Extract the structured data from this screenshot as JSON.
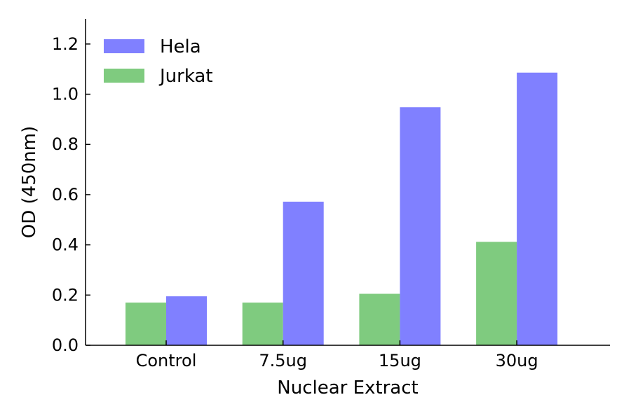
{
  "chart_data": {
    "type": "bar",
    "title": "",
    "xlabel": "Nuclear Extract",
    "ylabel": "OD (450nm)",
    "categories": [
      "Control",
      "7.5ug",
      "15ug",
      "30ug"
    ],
    "series": [
      {
        "name": "Jurkat",
        "color": "#7fcb7f",
        "values": [
          0.17,
          0.17,
          0.205,
          0.412
        ]
      },
      {
        "name": "Hela",
        "color": "#8080ff",
        "values": [
          0.195,
          0.572,
          0.948,
          1.086
        ]
      }
    ],
    "ylim": [
      0,
      1.3
    ],
    "yticks": [
      "0.0",
      "0.2",
      "0.4",
      "0.6",
      "0.8",
      "1.0",
      "1.2"
    ],
    "grid": false,
    "legend_position": "top-left",
    "legend_order": [
      "Hela",
      "Jurkat"
    ]
  }
}
